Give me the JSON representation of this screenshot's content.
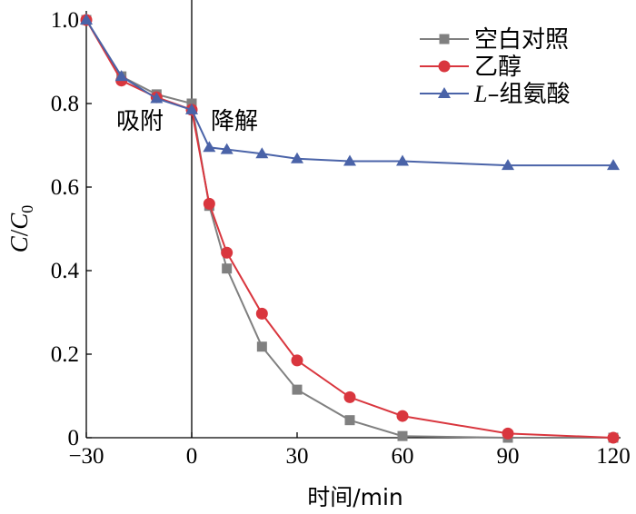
{
  "chart_data": {
    "type": "line",
    "xlabel": "时间/min",
    "ylabel_main": "C",
    "ylabel_sep": "/",
    "ylabel_var": "C",
    "ylabel_sub": "0",
    "xlim": [
      -30,
      120
    ],
    "ylim": [
      0,
      1.0
    ],
    "xticks": [
      -30,
      0,
      30,
      60,
      90,
      120
    ],
    "yticks": [
      0,
      0.2,
      0.4,
      0.6,
      0.8,
      1.0
    ],
    "xtick_labels": [
      "−30",
      "0",
      "30",
      "60",
      "90",
      "120"
    ],
    "ytick_labels": [
      "0",
      "0.2",
      "0.4",
      "0.6",
      "0.8",
      "1.0"
    ],
    "vline_x": 0,
    "annotations": {
      "adsorption": "吸附",
      "degradation": "降解"
    },
    "legend_position": "top-right",
    "grid": false,
    "series": [
      {
        "name": "空白对照",
        "color": "#808080",
        "marker": "square",
        "x": [
          -30,
          -20,
          -10,
          0,
          5,
          10,
          20,
          30,
          45,
          60,
          90,
          120
        ],
        "y": [
          1.0,
          0.865,
          0.822,
          0.8,
          0.555,
          0.405,
          0.218,
          0.115,
          0.042,
          0.004,
          0.0,
          0.0
        ]
      },
      {
        "name": "乙醇",
        "color": "#d9363e",
        "marker": "circle",
        "x": [
          -30,
          -20,
          -10,
          0,
          5,
          10,
          20,
          30,
          45,
          60,
          90,
          120
        ],
        "y": [
          1.0,
          0.855,
          0.815,
          0.785,
          0.56,
          0.443,
          0.297,
          0.185,
          0.097,
          0.052,
          0.01,
          0.0
        ]
      },
      {
        "name_italic": "L",
        "name_rest": "–组氨酸",
        "color": "#4a63a8",
        "marker": "triangle",
        "x": [
          -30,
          -20,
          -10,
          0,
          5,
          10,
          20,
          30,
          45,
          60,
          90,
          120
        ],
        "y": [
          1.0,
          0.865,
          0.812,
          0.785,
          0.695,
          0.69,
          0.68,
          0.668,
          0.662,
          0.662,
          0.652,
          0.652
        ]
      }
    ]
  }
}
